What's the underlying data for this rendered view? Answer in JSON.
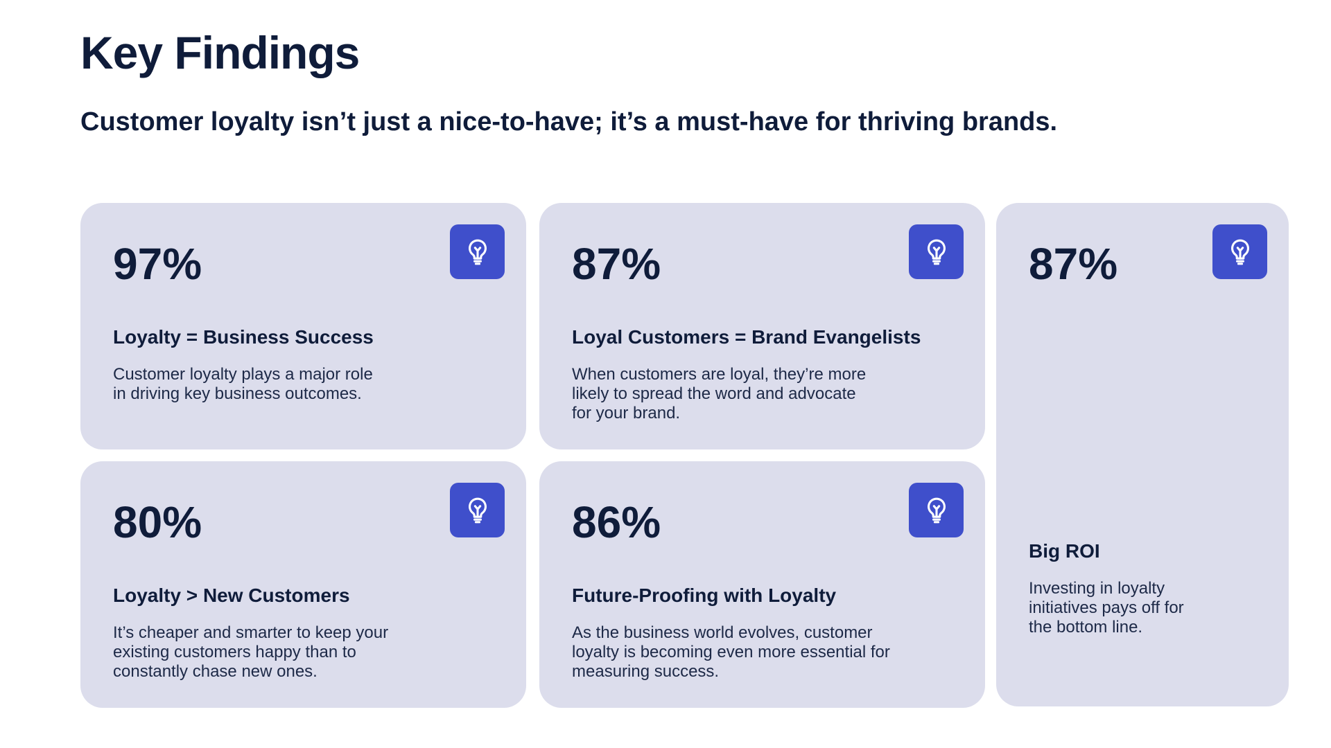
{
  "page": {
    "title": "Key Findings",
    "subtitle": "Customer loyalty isn’t just a nice-to-have; it’s a must-have for thriving brands."
  },
  "theme": {
    "card_bg": "#dcddec",
    "icon_tile_bg": "#3f4fcb",
    "text_dark": "#0f1c3a",
    "icon_name": "lightbulb-icon"
  },
  "cards": [
    {
      "stat": "97%",
      "title": "Loyalty = Business Success",
      "text": "Customer loyalty plays a major role\nin driving key business outcomes."
    },
    {
      "stat": "87%",
      "title": "Loyal Customers = Brand Evangelists",
      "text": "When customers are loyal, they’re more\nlikely to spread the word and advocate\nfor your brand."
    },
    {
      "stat": "87%",
      "title": "Big ROI",
      "text": "Investing in loyalty\ninitiatives pays off for\nthe bottom line."
    },
    {
      "stat": "80%",
      "title": "Loyalty > New Customers",
      "text": "It’s cheaper and smarter to keep your\nexisting customers happy than to\nconstantly chase new ones."
    },
    {
      "stat": "86%",
      "title": "Future-Proofing with Loyalty",
      "text": "As the business world evolves, customer\nloyalty is becoming even more essential for\nmeasuring success."
    }
  ]
}
